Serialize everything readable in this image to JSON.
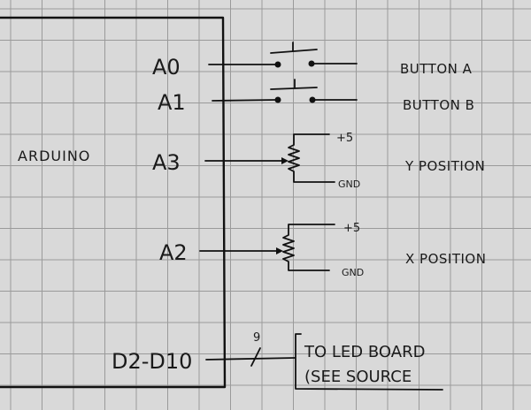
{
  "arduino": {
    "label": "ARDUINO",
    "pins": {
      "a0": "A0",
      "a1": "A1",
      "a3": "A3",
      "a2": "A2",
      "digital": "D2-D10"
    }
  },
  "components": {
    "button_a": "BUTTON A",
    "button_b": "BUTTON B",
    "y_position": "Y POSITION",
    "x_position": "X POSITION",
    "y_pot_plus": "+5",
    "y_pot_gnd": "GND",
    "x_pot_plus": "+5",
    "x_pot_gnd": "GND",
    "bus_width": "9",
    "led_board_line1": "TO LED BOARD",
    "led_board_line2": "(SEE SOURCE"
  },
  "colors": {
    "paper": "#d9d9d9",
    "grid": "#9a9a9a",
    "ink": "#111111"
  }
}
